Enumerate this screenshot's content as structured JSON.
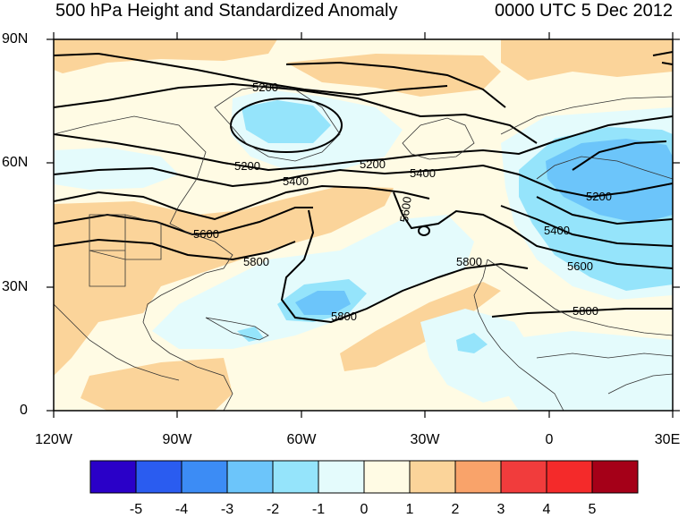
{
  "title_left": "500 hPa Height and Standardized Anomaly",
  "title_right": "0000 UTC 5 Dec 2012",
  "lat_labels": [
    "90N",
    "60N",
    "30N",
    "0"
  ],
  "lon_labels": [
    "120W",
    "90W",
    "60W",
    "30W",
    "0",
    "30E"
  ],
  "colorbar": {
    "labels": [
      "-5",
      "-4",
      "-3",
      "-2",
      "-1",
      "0",
      "1",
      "2",
      "3",
      "4",
      "5"
    ],
    "colors": [
      "#2a00c8",
      "#2a5cf0",
      "#3c8cf5",
      "#6cc5fa",
      "#95e4fb",
      "#e4fbfc",
      "#fffbe4",
      "#fbd49a",
      "#f9a36a",
      "#f13c3c",
      "#f42a2a",
      "#a50018"
    ]
  },
  "contour_labels": [
    "5200",
    "5200",
    "5200",
    "5200",
    "5400",
    "5400",
    "5400",
    "5600",
    "5600",
    "5600",
    "5800",
    "5800",
    "5800",
    "5800"
  ]
}
